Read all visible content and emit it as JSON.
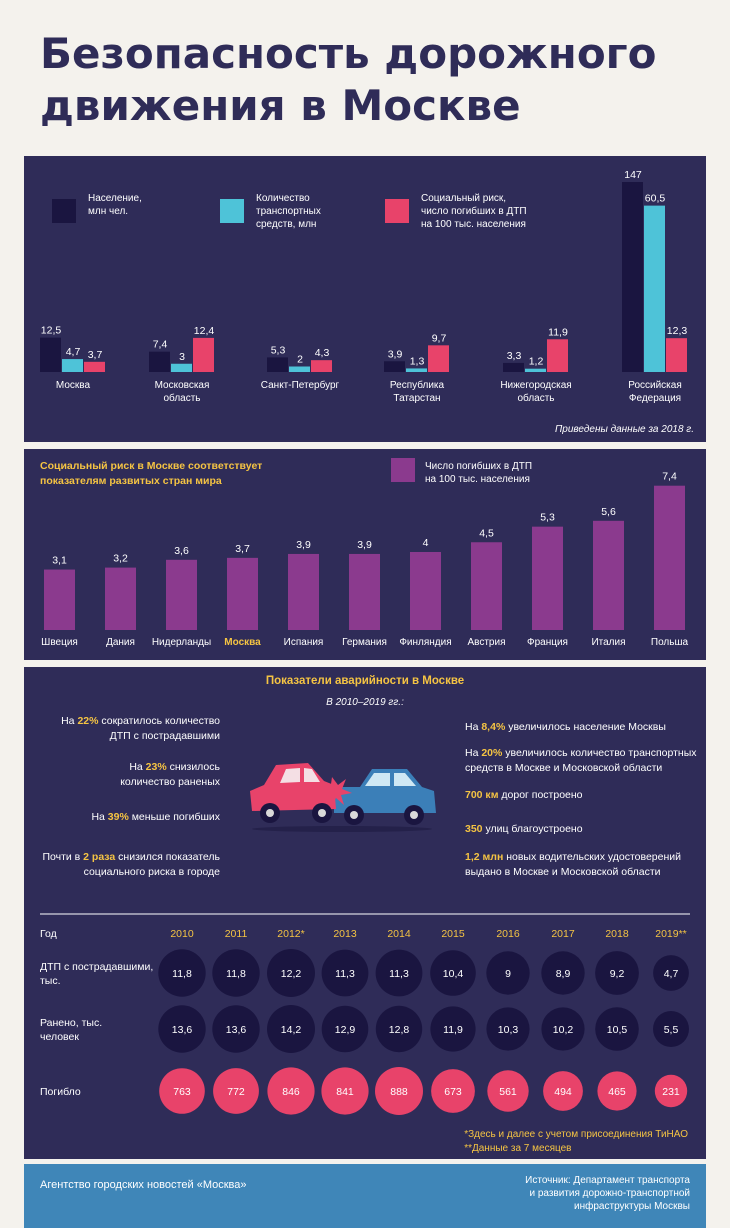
{
  "page": {
    "title_line1": "Безопасность дорожного",
    "title_line2": "движения в Москве"
  },
  "colors": {
    "navy": "#2f2c58",
    "population": "#1a1540",
    "vehicles": "#4ec3d8",
    "risk": "#e8436a",
    "purple": "#8b3a8e",
    "yellow": "#f5c443",
    "footer": "#3f86b8"
  },
  "chart_data": [
    {
      "type": "bar",
      "legend": {
        "population": [
          "Население,",
          "млн чел."
        ],
        "vehicles": [
          "Количество",
          "транспортных",
          "средств, млн"
        ],
        "risk": [
          "Социальный риск,",
          "число погибших в ДТП",
          "на 100 тыс. населения"
        ]
      },
      "categories": [
        [
          "Москва"
        ],
        [
          "Московская",
          "область"
        ],
        [
          "Санкт-Петербург"
        ],
        [
          "Республика",
          "Татарстан"
        ],
        [
          "Нижегородская",
          "область"
        ],
        [
          "Российская",
          "Федерация"
        ]
      ],
      "series": [
        {
          "key": "population",
          "values": [
            12.5,
            7.4,
            5.3,
            3.9,
            3.3,
            147
          ],
          "labels": [
            "12,5",
            "7,4",
            "5,3",
            "3,9",
            "3,3",
            "147"
          ]
        },
        {
          "key": "vehicles",
          "values": [
            4.7,
            3,
            2,
            1.3,
            1.2,
            60.5
          ],
          "labels": [
            "4,7",
            "3",
            "2",
            "1,3",
            "1,2",
            "60,5"
          ]
        },
        {
          "key": "risk",
          "values": [
            3.7,
            12.4,
            4.3,
            9.7,
            11.9,
            12.3
          ],
          "labels": [
            "3,7",
            "12,4",
            "4,3",
            "9,7",
            "11,9",
            "12,3"
          ]
        }
      ],
      "note": "Приведены данные за 2018 г."
    },
    {
      "type": "bar",
      "title": [
        "Социальный риск в Москве соответствует",
        "показателям развитых стран мира"
      ],
      "legend": [
        "Число погибших в ДТП",
        "на 100 тыс. населения"
      ],
      "categories": [
        "Швеция",
        "Дания",
        "Нидерланды",
        "Москва",
        "Испания",
        "Германия",
        "Финляндия",
        "Австрия",
        "Франция",
        "Италия",
        "Польша"
      ],
      "highlight": "Москва",
      "values": [
        3.1,
        3.2,
        3.6,
        3.7,
        3.9,
        3.9,
        4,
        4.5,
        5.3,
        5.6,
        7.4
      ],
      "labels": [
        "3,1",
        "3,2",
        "3,6",
        "3,7",
        "3,9",
        "3,9",
        "4",
        "4,5",
        "5,3",
        "5,6",
        "7,4"
      ]
    },
    {
      "type": "table",
      "title": "Показатели аварийности в Москве",
      "years_label": "Год",
      "years": [
        "2010",
        "2011",
        "2012*",
        "2013",
        "2014",
        "2015",
        "2016",
        "2017",
        "2018",
        "2019**"
      ],
      "rows": [
        {
          "label": [
            "ДТП с пострадавшими,",
            "тыс."
          ],
          "values": [
            11.8,
            11.8,
            12.2,
            11.3,
            11.3,
            10.4,
            9,
            8.9,
            9.2,
            4.7
          ],
          "labels": [
            "11,8",
            "11,8",
            "12,2",
            "11,3",
            "11,3",
            "10,4",
            "9",
            "8,9",
            "9,2",
            "4,7"
          ]
        },
        {
          "label": [
            "Ранено, тыс.",
            "человек"
          ],
          "values": [
            13.6,
            13.6,
            14.2,
            12.9,
            12.8,
            11.9,
            10.3,
            10.2,
            10.5,
            5.5
          ],
          "labels": [
            "13,6",
            "13,6",
            "14,2",
            "12,9",
            "12,8",
            "11,9",
            "10,3",
            "10,2",
            "10,5",
            "5,5"
          ]
        },
        {
          "label": [
            "Погибло"
          ],
          "values": [
            763,
            772,
            846,
            841,
            888,
            673,
            561,
            494,
            465,
            231
          ],
          "labels": [
            "763",
            "772",
            "846",
            "841",
            "888",
            "673",
            "561",
            "494",
            "465",
            "231"
          ]
        }
      ],
      "footnotes": [
        "*Здесь и далее с учетом присоединения ТиНАО",
        "**Данные за 7 месяцев"
      ]
    }
  ],
  "facts": {
    "period": "В 2010–2019 гг.:",
    "left": [
      {
        "pre": "На ",
        "hl": "22%",
        "post": " сократилось количество",
        "line2": "ДТП с пострадавшими"
      },
      {
        "pre": "На ",
        "hl": "23%",
        "post": " снизилось",
        "line2": "количество раненых"
      },
      {
        "pre": "На ",
        "hl": "39%",
        "post": " меньше погибших",
        "line2": ""
      },
      {
        "pre": "Почти в ",
        "hl": "2 раза",
        "post": " снизился показатель",
        "line2": "социального риска в городе"
      }
    ],
    "right": [
      {
        "pre": "На ",
        "hl": "8,4%",
        "post": " увеличилось население Москвы",
        "line2": ""
      },
      {
        "pre": "На ",
        "hl": "20%",
        "post": " увеличилось количество транспортных",
        "line2": "средств в Москве и Московской области"
      },
      {
        "pre": "",
        "hl": "700 км",
        "post": " дорог построено",
        "line2": ""
      },
      {
        "pre": "",
        "hl": "350",
        "post": " улиц благоустроено",
        "line2": ""
      },
      {
        "pre": "",
        "hl": "1,2 млн",
        "post": " новых водительских удостоверений",
        "line2": "выдано в Москве и Московской области"
      }
    ]
  },
  "footer": {
    "agency": "Агентство городских новостей «Москва»",
    "source_line1": "Источник: Департамент транспорта",
    "source_line2": "и развития дорожно-транспортной",
    "source_line3": "инфраструктуры Москвы"
  }
}
